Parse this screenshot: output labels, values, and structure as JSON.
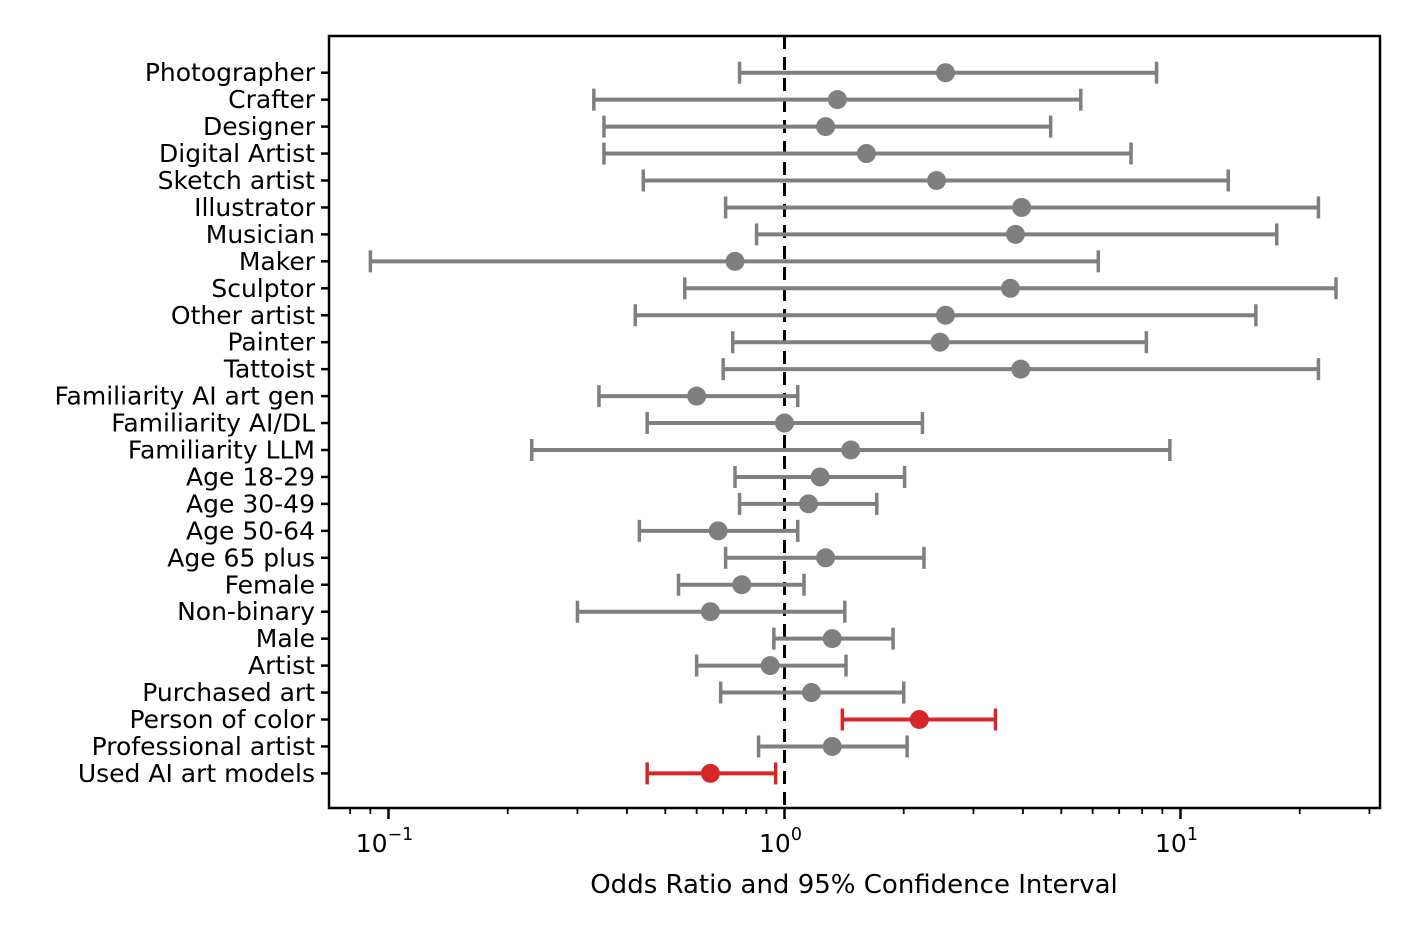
{
  "chart_data": {
    "type": "scatter",
    "subtype": "forest-plot-errorbar",
    "title": "",
    "xlabel": "Odds Ratio and 95% Confidence Interval",
    "ylabel": "",
    "x_scale": "log",
    "xlim": [
      0.07,
      32
    ],
    "grid": false,
    "legend": "none",
    "reference_line_x": 1.0,
    "reference_line_style": "black dashed vertical",
    "colors": {
      "default_marker": "#7f7f7f",
      "highlight_marker": "#d62728",
      "axis": "#000000",
      "background": "#ffffff"
    },
    "x_major_ticks": [
      {
        "value": 0.1,
        "base": "10",
        "exponent": "−1"
      },
      {
        "value": 1,
        "base": "10",
        "exponent": "0"
      },
      {
        "value": 10,
        "base": "10",
        "exponent": "1"
      }
    ],
    "x_minor_ticks": [
      0.08,
      0.09,
      0.2,
      0.3,
      0.4,
      0.5,
      0.6,
      0.7,
      0.8,
      0.9,
      2,
      3,
      4,
      5,
      6,
      7,
      8,
      9,
      20,
      30
    ],
    "rows": [
      {
        "label": "Photographer",
        "or": 2.55,
        "ci_low": 0.77,
        "ci_high": 8.7,
        "highlight": false
      },
      {
        "label": "Crafter",
        "or": 1.36,
        "ci_low": 0.33,
        "ci_high": 5.6,
        "highlight": false
      },
      {
        "label": "Designer",
        "or": 1.27,
        "ci_low": 0.35,
        "ci_high": 4.7,
        "highlight": false
      },
      {
        "label": "Digital Artist",
        "or": 1.61,
        "ci_low": 0.35,
        "ci_high": 7.5,
        "highlight": false
      },
      {
        "label": "Sketch artist",
        "or": 2.42,
        "ci_low": 0.44,
        "ci_high": 13.2,
        "highlight": false
      },
      {
        "label": "Illustrator",
        "or": 3.97,
        "ci_low": 0.71,
        "ci_high": 22.3,
        "highlight": false
      },
      {
        "label": "Musician",
        "or": 3.83,
        "ci_low": 0.85,
        "ci_high": 17.5,
        "highlight": false
      },
      {
        "label": "Maker",
        "or": 0.75,
        "ci_low": 0.09,
        "ci_high": 6.2,
        "highlight": false
      },
      {
        "label": "Sculptor",
        "or": 3.72,
        "ci_low": 0.56,
        "ci_high": 24.7,
        "highlight": false
      },
      {
        "label": "Other artist",
        "or": 2.55,
        "ci_low": 0.42,
        "ci_high": 15.5,
        "highlight": false
      },
      {
        "label": "Painter",
        "or": 2.47,
        "ci_low": 0.74,
        "ci_high": 8.2,
        "highlight": false
      },
      {
        "label": "Tattoist",
        "or": 3.95,
        "ci_low": 0.7,
        "ci_high": 22.3,
        "highlight": false
      },
      {
        "label": "Familiarity AI art gen",
        "or": 0.6,
        "ci_low": 0.34,
        "ci_high": 1.08,
        "highlight": false
      },
      {
        "label": "Familiarity AI/DL",
        "or": 1.0,
        "ci_low": 0.45,
        "ci_high": 2.23,
        "highlight": false
      },
      {
        "label": "Familiarity LLM",
        "or": 1.47,
        "ci_low": 0.23,
        "ci_high": 9.4,
        "highlight": false
      },
      {
        "label": "Age 18-29",
        "or": 1.23,
        "ci_low": 0.75,
        "ci_high": 2.01,
        "highlight": false
      },
      {
        "label": "Age 30-49",
        "or": 1.15,
        "ci_low": 0.77,
        "ci_high": 1.71,
        "highlight": false
      },
      {
        "label": "Age 50-64",
        "or": 0.68,
        "ci_low": 0.43,
        "ci_high": 1.08,
        "highlight": false
      },
      {
        "label": "Age 65 plus",
        "or": 1.27,
        "ci_low": 0.71,
        "ci_high": 2.25,
        "highlight": false
      },
      {
        "label": "Female",
        "or": 0.78,
        "ci_low": 0.54,
        "ci_high": 1.12,
        "highlight": false
      },
      {
        "label": "Non-binary",
        "or": 0.65,
        "ci_low": 0.3,
        "ci_high": 1.42,
        "highlight": false
      },
      {
        "label": "Male",
        "or": 1.32,
        "ci_low": 0.94,
        "ci_high": 1.88,
        "highlight": false
      },
      {
        "label": "Artist",
        "or": 0.92,
        "ci_low": 0.6,
        "ci_high": 1.43,
        "highlight": false
      },
      {
        "label": "Purchased art",
        "or": 1.17,
        "ci_low": 0.69,
        "ci_high": 2.0,
        "highlight": false
      },
      {
        "label": "Person of color",
        "or": 2.19,
        "ci_low": 1.4,
        "ci_high": 3.41,
        "highlight": true
      },
      {
        "label": "Professional artist",
        "or": 1.32,
        "ci_low": 0.86,
        "ci_high": 2.04,
        "highlight": false
      },
      {
        "label": "Used AI art models",
        "or": 0.65,
        "ci_low": 0.45,
        "ci_high": 0.95,
        "highlight": true
      }
    ]
  }
}
